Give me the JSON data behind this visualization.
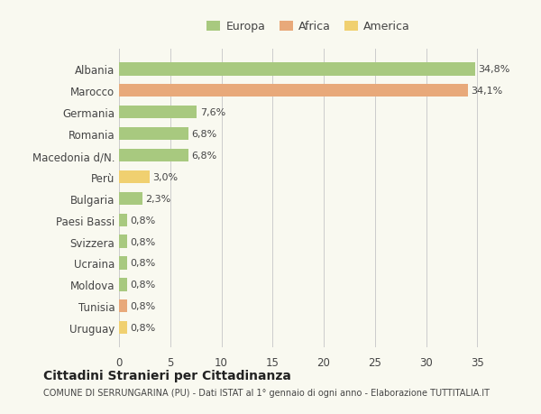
{
  "categories": [
    "Albania",
    "Marocco",
    "Germania",
    "Romania",
    "Macedonia d/N.",
    "Perù",
    "Bulgaria",
    "Paesi Bassi",
    "Svizzera",
    "Ucraina",
    "Moldova",
    "Tunisia",
    "Uruguay"
  ],
  "values": [
    34.8,
    34.1,
    7.6,
    6.8,
    6.8,
    3.0,
    2.3,
    0.8,
    0.8,
    0.8,
    0.8,
    0.8,
    0.8
  ],
  "labels": [
    "34,8%",
    "34,1%",
    "7,6%",
    "6,8%",
    "6,8%",
    "3,0%",
    "2,3%",
    "0,8%",
    "0,8%",
    "0,8%",
    "0,8%",
    "0,8%",
    "0,8%"
  ],
  "continents": [
    "Europa",
    "Africa",
    "Europa",
    "Europa",
    "Europa",
    "America",
    "Europa",
    "Europa",
    "Europa",
    "Europa",
    "Europa",
    "Africa",
    "America"
  ],
  "colors": {
    "Europa": "#a8c97f",
    "Africa": "#e8a97a",
    "America": "#f0d070"
  },
  "legend_colors": {
    "Europa": "#a8c97f",
    "Africa": "#e8a97a",
    "America": "#f0d070"
  },
  "title": "Cittadini Stranieri per Cittadinanza",
  "subtitle": "COMUNE DI SERRUNGARINA (PU) - Dati ISTAT al 1° gennaio di ogni anno - Elaborazione TUTTITALIA.IT",
  "xticks": [
    0,
    5,
    10,
    15,
    20,
    25,
    30,
    35
  ],
  "xlim": [
    0,
    37
  ],
  "background_color": "#f9f9f0",
  "grid_color": "#cccccc"
}
